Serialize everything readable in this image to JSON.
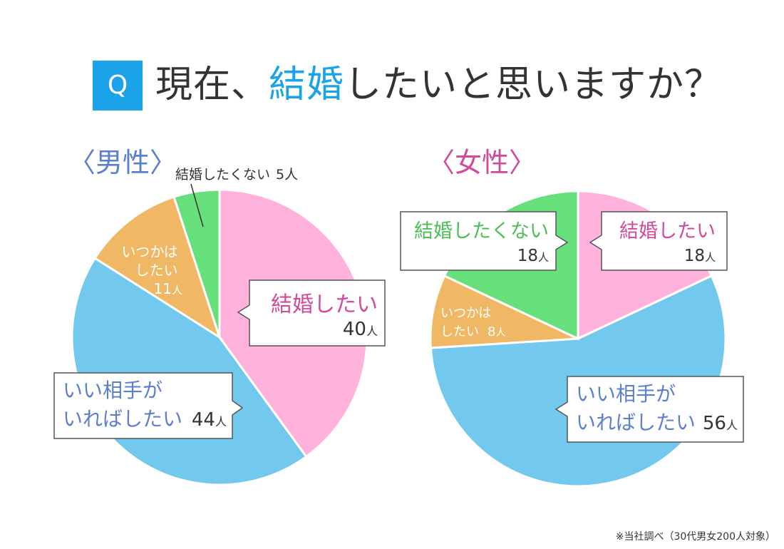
{
  "header": {
    "badge": "Q",
    "title_prefix": "現在、",
    "title_accent": "結婚",
    "title_suffix": "したいと思いますか？"
  },
  "footnote": "※当社調べ（30代男女200人対象）",
  "colors": {
    "accent": "#1aa3e8",
    "want": "#ffb3dc",
    "if_partner": "#73c8ee",
    "someday": "#f0b865",
    "not_want": "#66e07a",
    "male_label": "#5b7fcf",
    "female_label": "#d24a9a"
  },
  "chart_data": [
    {
      "type": "pie",
      "title": "〈男性〉",
      "unit": "人",
      "slices": [
        {
          "label": "結婚したい",
          "value": 40,
          "color": "#ffb3dc"
        },
        {
          "label": "いい相手がいればしたい",
          "value": 44,
          "color": "#73c8ee"
        },
        {
          "label": "いつかはしたい",
          "value": 11,
          "color": "#f0b865"
        },
        {
          "label": "結婚したくない",
          "value": 5,
          "color": "#66e07a"
        }
      ]
    },
    {
      "type": "pie",
      "title": "〈女性〉",
      "unit": "人",
      "slices": [
        {
          "label": "結婚したい",
          "value": 18,
          "color": "#ffb3dc"
        },
        {
          "label": "いい相手がいればしたい",
          "value": 56,
          "color": "#73c8ee"
        },
        {
          "label": "いつかはしたい",
          "value": 8,
          "color": "#f0b865"
        },
        {
          "label": "結婚したくない",
          "value": 18,
          "color": "#66e07a"
        }
      ]
    }
  ],
  "callouts": {
    "male": {
      "want": {
        "line1": "結婚したい",
        "num": "40",
        "unit": "人"
      },
      "if_partner": {
        "line1": "いい相手が",
        "line2": "いればしたい",
        "num": "44",
        "unit": "人"
      },
      "someday": {
        "line1": "いつかは",
        "line2": "したい",
        "num": "11",
        "unit": "人"
      },
      "not_want": {
        "line1": "結婚したくない",
        "num": "5",
        "unit": "人"
      }
    },
    "female": {
      "want": {
        "line1": "結婚したい",
        "num": "18",
        "unit": "人"
      },
      "if_partner": {
        "line1": "いい相手が",
        "line2": "いればしたい",
        "num": "56",
        "unit": "人"
      },
      "someday": {
        "line1": "いつかは",
        "line2": "したい",
        "num": "8",
        "unit": "人"
      },
      "not_want": {
        "line1": "結婚したくない",
        "num": "18",
        "unit": "人"
      }
    }
  }
}
